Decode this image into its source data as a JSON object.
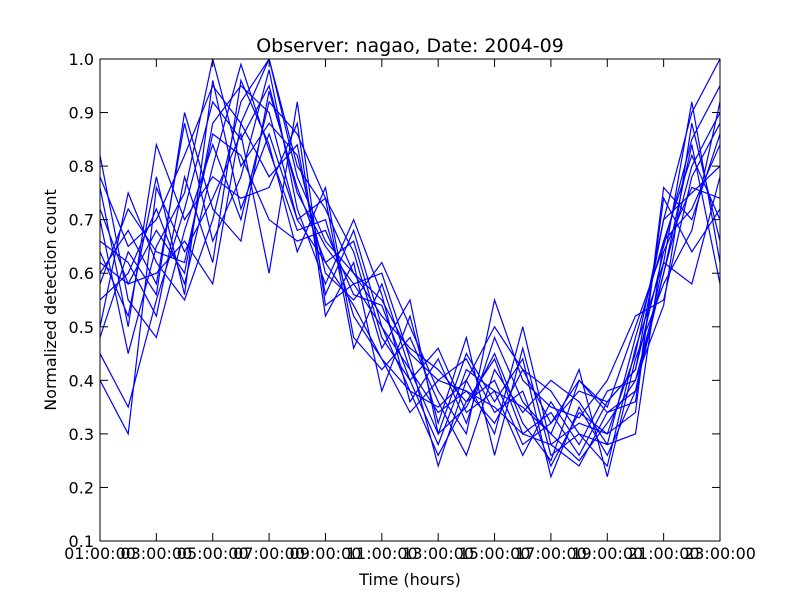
{
  "chart_data": {
    "type": "line",
    "title": "Observer: nagao, Date: 2004-09",
    "xlabel": "Time (hours)",
    "ylabel": "Normalized detection count",
    "xlim": [
      1,
      23
    ],
    "ylim": [
      0.1,
      1.0
    ],
    "x_tick_values": [
      1,
      3,
      5,
      7,
      9,
      11,
      13,
      15,
      17,
      19,
      21,
      23
    ],
    "x_tick_labels": [
      "01:00:00",
      "03:00:00",
      "05:00:00",
      "07:00:00",
      "09:00:00",
      "11:00:00",
      "13:00:00",
      "15:00:00",
      "17:00:00",
      "19:00:00",
      "21:00:00",
      "23:00:00"
    ],
    "x_tick_overlap_labels": [
      "03",
      "05",
      "07",
      "09",
      "11",
      "13",
      "15",
      "17",
      "19",
      "21",
      "23",
      ""
    ],
    "y_tick_values": [
      0.1,
      0.2,
      0.3,
      0.4,
      0.5,
      0.6,
      0.7,
      0.8,
      0.9,
      1.0
    ],
    "y_tick_labels": [
      "0.1",
      "0.2",
      "0.3",
      "0.4",
      "0.5",
      "0.6",
      "0.7",
      "0.8",
      "0.9",
      "1.0"
    ],
    "grid": false,
    "line_color": "#0000ff",
    "x": [
      1,
      2,
      3,
      4,
      5,
      6,
      7,
      8,
      9,
      10,
      11,
      12,
      13,
      14,
      15,
      16,
      17,
      18,
      19,
      20,
      21,
      22,
      23
    ],
    "series": [
      {
        "values": [
          0.78,
          0.65,
          0.7,
          0.82,
          0.95,
          0.88,
          1.0,
          0.8,
          0.72,
          0.6,
          0.55,
          0.45,
          0.4,
          0.38,
          0.35,
          0.3,
          0.28,
          0.32,
          0.3,
          0.45,
          0.7,
          0.9,
          1.0
        ]
      },
      {
        "values": [
          0.45,
          0.35,
          0.55,
          0.72,
          0.92,
          0.85,
          0.95,
          0.75,
          0.65,
          0.58,
          0.5,
          0.42,
          0.3,
          0.35,
          0.45,
          0.32,
          0.25,
          0.4,
          0.35,
          0.5,
          0.65,
          0.85,
          0.95
        ]
      },
      {
        "values": [
          0.62,
          0.58,
          0.68,
          0.6,
          0.88,
          0.95,
          0.9,
          0.7,
          0.62,
          0.66,
          0.48,
          0.4,
          0.28,
          0.42,
          0.38,
          0.35,
          0.3,
          0.25,
          0.32,
          0.4,
          0.6,
          0.8,
          0.9
        ]
      },
      {
        "values": [
          0.55,
          0.6,
          0.72,
          0.58,
          0.8,
          0.99,
          0.83,
          0.68,
          0.7,
          0.52,
          0.44,
          0.38,
          0.35,
          0.4,
          0.5,
          0.42,
          0.38,
          0.3,
          0.28,
          0.48,
          0.66,
          0.72,
          0.84
        ]
      },
      {
        "values": [
          0.7,
          0.45,
          0.65,
          0.75,
          1.0,
          0.8,
          0.88,
          0.82,
          0.6,
          0.55,
          0.62,
          0.5,
          0.38,
          0.3,
          0.55,
          0.4,
          0.35,
          0.33,
          0.4,
          0.52,
          0.55,
          0.78,
          0.88
        ]
      },
      {
        "values": [
          0.5,
          0.75,
          0.62,
          0.55,
          0.7,
          0.92,
          1.0,
          0.78,
          0.66,
          0.6,
          0.52,
          0.46,
          0.42,
          0.36,
          0.4,
          0.28,
          0.32,
          0.38,
          0.36,
          0.42,
          0.7,
          0.75,
          0.8
        ]
      },
      {
        "values": [
          0.82,
          0.55,
          0.48,
          0.68,
          0.84,
          0.7,
          0.92,
          0.86,
          0.74,
          0.64,
          0.46,
          0.55,
          0.3,
          0.45,
          0.36,
          0.44,
          0.22,
          0.35,
          0.26,
          0.38,
          0.62,
          0.92,
          0.62
        ]
      },
      {
        "values": [
          0.6,
          0.68,
          0.58,
          0.88,
          0.66,
          0.78,
          0.98,
          0.72,
          0.58,
          0.7,
          0.56,
          0.36,
          0.44,
          0.32,
          0.48,
          0.36,
          0.3,
          0.42,
          0.22,
          0.44,
          0.58,
          0.68,
          0.92
        ]
      },
      {
        "values": [
          0.4,
          0.3,
          0.76,
          0.64,
          0.74,
          0.86,
          0.6,
          0.92,
          0.54,
          0.58,
          0.6,
          0.44,
          0.24,
          0.4,
          0.3,
          0.5,
          0.28,
          0.24,
          0.34,
          0.36,
          0.74,
          0.64,
          0.72
        ]
      },
      {
        "values": [
          0.66,
          0.62,
          0.52,
          0.78,
          0.62,
          0.96,
          0.84,
          0.64,
          0.76,
          0.48,
          0.42,
          0.48,
          0.36,
          0.26,
          0.42,
          0.34,
          0.4,
          0.36,
          0.28,
          0.3,
          0.66,
          0.82,
          0.7
        ]
      },
      {
        "values": [
          0.76,
          0.5,
          0.84,
          0.7,
          0.78,
          0.74,
          0.76,
          0.88,
          0.52,
          0.62,
          0.38,
          0.52,
          0.32,
          0.48,
          0.26,
          0.46,
          0.26,
          0.3,
          0.24,
          0.46,
          0.62,
          0.58,
          0.78
        ]
      },
      {
        "values": [
          0.58,
          0.72,
          0.64,
          0.62,
          0.86,
          0.82,
          0.7,
          0.66,
          0.68,
          0.56,
          0.54,
          0.4,
          0.46,
          0.34,
          0.38,
          0.26,
          0.36,
          0.28,
          0.38,
          0.4,
          0.54,
          0.88,
          0.66
        ]
      },
      {
        "values": [
          0.48,
          0.64,
          0.56,
          0.9,
          0.72,
          0.66,
          0.94,
          0.76,
          0.62,
          0.54,
          0.44,
          0.34,
          0.4,
          0.44,
          0.34,
          0.38,
          0.24,
          0.34,
          0.3,
          0.34,
          0.76,
          0.7,
          0.86
        ]
      },
      {
        "values": [
          0.72,
          0.58,
          0.6,
          0.66,
          0.58,
          0.88,
          0.78,
          0.84,
          0.56,
          0.68,
          0.5,
          0.38,
          0.26,
          0.36,
          0.44,
          0.3,
          0.34,
          0.26,
          0.36,
          0.42,
          0.64,
          0.76,
          0.74
        ]
      },
      {
        "values": [
          0.64,
          0.52,
          0.78,
          0.56,
          0.96,
          0.72,
          0.86,
          0.7,
          0.74,
          0.46,
          0.58,
          0.42,
          0.34,
          0.38,
          0.32,
          0.42,
          0.32,
          0.4,
          0.34,
          0.38,
          0.6,
          0.84,
          0.58
        ]
      }
    ]
  }
}
